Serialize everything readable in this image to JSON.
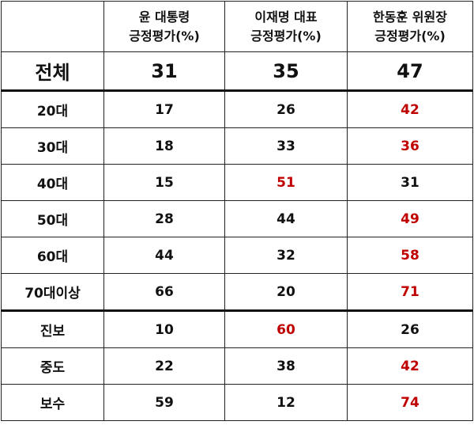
{
  "headers": [
    "",
    [
      "윤 대통령",
      "긍정평가(%)"
    ],
    [
      "이재명 대표",
      "긍정평가(%)"
    ],
    [
      "한동훈 위원장",
      "긍정평가(%)"
    ]
  ],
  "highlight_color": "#c00000",
  "rows": [
    {
      "label": "전체",
      "values": [
        "31",
        "35",
        "47"
      ],
      "red": [
        false,
        false,
        false
      ]
    },
    {
      "label": "20대",
      "values": [
        "17",
        "26",
        "42"
      ],
      "red": [
        false,
        false,
        true
      ]
    },
    {
      "label": "30대",
      "values": [
        "18",
        "33",
        "36"
      ],
      "red": [
        false,
        false,
        true
      ]
    },
    {
      "label": "40대",
      "values": [
        "15",
        "51",
        "31"
      ],
      "red": [
        false,
        true,
        false
      ]
    },
    {
      "label": "50대",
      "values": [
        "28",
        "44",
        "49"
      ],
      "red": [
        false,
        false,
        true
      ]
    },
    {
      "label": "60대",
      "values": [
        "44",
        "32",
        "58"
      ],
      "red": [
        false,
        false,
        true
      ]
    },
    {
      "label": "70대이상",
      "values": [
        "66",
        "20",
        "71"
      ],
      "red": [
        false,
        false,
        true
      ]
    },
    {
      "label": "진보",
      "values": [
        "10",
        "60",
        "26"
      ],
      "red": [
        false,
        true,
        false
      ]
    },
    {
      "label": "중도",
      "values": [
        "22",
        "38",
        "42"
      ],
      "red": [
        false,
        false,
        true
      ]
    },
    {
      "label": "보수",
      "values": [
        "59",
        "12",
        "74"
      ],
      "red": [
        false,
        false,
        true
      ]
    }
  ]
}
